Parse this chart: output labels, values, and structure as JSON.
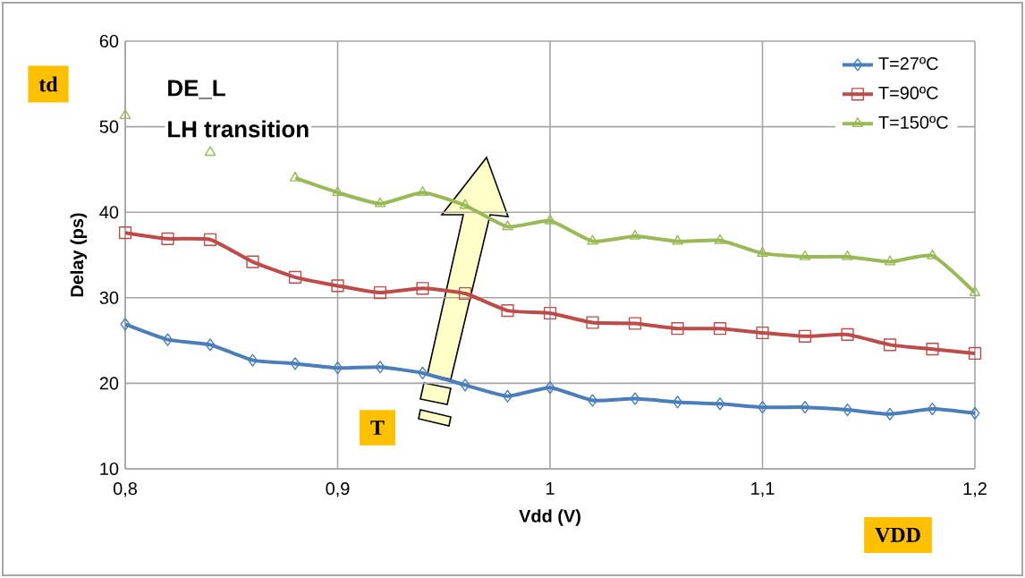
{
  "chart_data": {
    "type": "line",
    "xlabel": "Vdd (V)",
    "ylabel": "Delay (ps)",
    "x": [
      0.8,
      0.82,
      0.84,
      0.86,
      0.88,
      0.9,
      0.92,
      0.94,
      0.96,
      0.98,
      1.0,
      1.02,
      1.04,
      1.06,
      1.08,
      1.1,
      1.12,
      1.14,
      1.16,
      1.18,
      1.2
    ],
    "series": [
      {
        "name": "T=27ºC",
        "color": "#4a7ebb",
        "marker": "diamond",
        "values": [
          26.9,
          25.1,
          24.5,
          22.7,
          22.3,
          21.8,
          21.9,
          21.2,
          19.8,
          18.5,
          19.5,
          18.0,
          18.2,
          17.8,
          17.6,
          17.2,
          17.2,
          16.9,
          16.4,
          17.0,
          16.5
        ]
      },
      {
        "name": "T=90ºC",
        "color": "#be4b48",
        "marker": "square",
        "values": [
          37.6,
          36.9,
          36.8,
          34.2,
          32.4,
          31.4,
          30.6,
          31.1,
          30.5,
          28.5,
          28.2,
          27.1,
          27.0,
          26.4,
          26.4,
          25.9,
          25.5,
          25.7,
          24.5,
          24.0,
          23.5
        ]
      },
      {
        "name": "T=150ºC",
        "color": "#98b954",
        "marker": "triangle",
        "values": [
          51.3,
          null,
          47.0,
          null,
          44.0,
          42.3,
          41.0,
          42.3,
          40.8,
          38.3,
          39.0,
          36.6,
          37.2,
          36.6,
          36.7,
          35.2,
          34.8,
          34.8,
          34.2,
          34.9,
          30.6
        ]
      }
    ],
    "xlim": [
      0.8,
      1.2
    ],
    "xticks": [
      {
        "value": 0.8,
        "label": "0,8"
      },
      {
        "value": 0.9,
        "label": "0,9"
      },
      {
        "value": 1.0,
        "label": "1"
      },
      {
        "value": 1.1,
        "label": "1,1"
      },
      {
        "value": 1.2,
        "label": "1,2"
      }
    ],
    "ylim": [
      10,
      60
    ],
    "yticks": [
      10,
      20,
      30,
      40,
      50,
      60
    ],
    "grid": true,
    "legend": "top right",
    "line_style": "solid",
    "annotations": [
      "td",
      "DE_L",
      "LH transition",
      "T",
      "VDD"
    ]
  }
}
